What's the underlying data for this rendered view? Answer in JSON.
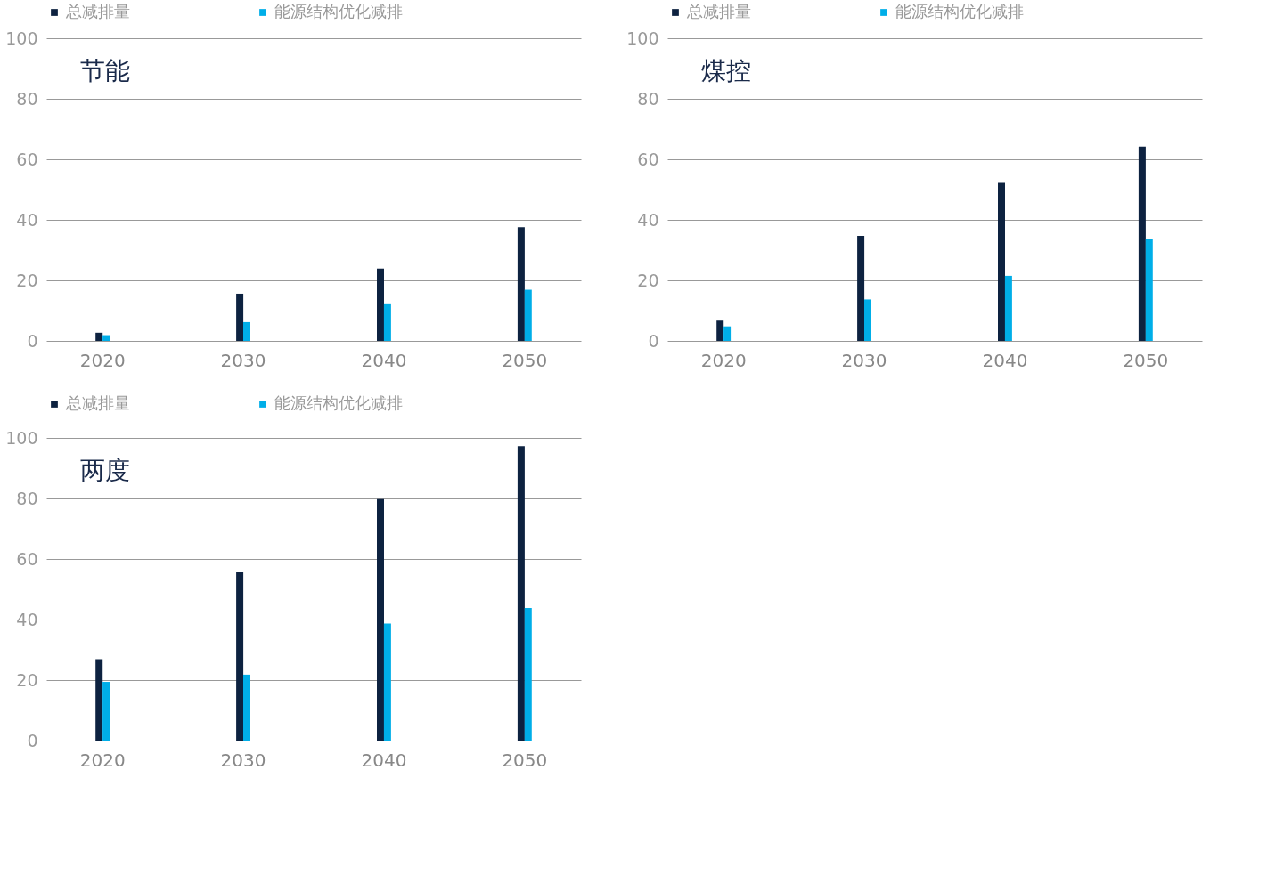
{
  "chart_data": [
    {
      "type": "bar",
      "title": "节能",
      "categories": [
        "2020",
        "2030",
        "2040",
        "2050"
      ],
      "ylim": [
        0,
        100
      ],
      "yticks": [
        0,
        20,
        40,
        60,
        80,
        100
      ],
      "grid": "y",
      "legend": "top",
      "series": [
        {
          "name": "总减排量",
          "color": "#0d2240",
          "values": [
            2.7,
            15.6,
            23.9,
            37.6
          ]
        },
        {
          "name": "能源结构优化减排",
          "color": "#00aee8",
          "values": [
            1.9,
            6.2,
            12.4,
            16.9
          ]
        }
      ]
    },
    {
      "type": "bar",
      "title": "煤控",
      "categories": [
        "2020",
        "2030",
        "2040",
        "2050"
      ],
      "ylim": [
        0,
        100
      ],
      "yticks": [
        0,
        20,
        40,
        60,
        80,
        100
      ],
      "grid": "y",
      "legend": "top",
      "series": [
        {
          "name": "总减排量",
          "color": "#0d2240",
          "values": [
            6.7,
            34.7,
            52.2,
            64.2
          ]
        },
        {
          "name": "能源结构优化减排",
          "color": "#00aee8",
          "values": [
            4.8,
            13.7,
            21.5,
            33.6
          ]
        }
      ]
    },
    {
      "type": "bar",
      "title": "两度",
      "categories": [
        "2020",
        "2030",
        "2040",
        "2050"
      ],
      "ylim": [
        0,
        100
      ],
      "yticks": [
        0,
        20,
        40,
        60,
        80,
        100
      ],
      "grid": "y",
      "legend": "top",
      "series": [
        {
          "name": "总减排量",
          "color": "#0d2240",
          "values": [
            26.9,
            55.6,
            79.8,
            97.3
          ]
        },
        {
          "name": "能源结构优化减排",
          "color": "#00aee8",
          "values": [
            19.4,
            21.8,
            38.7,
            43.8
          ]
        }
      ]
    }
  ]
}
